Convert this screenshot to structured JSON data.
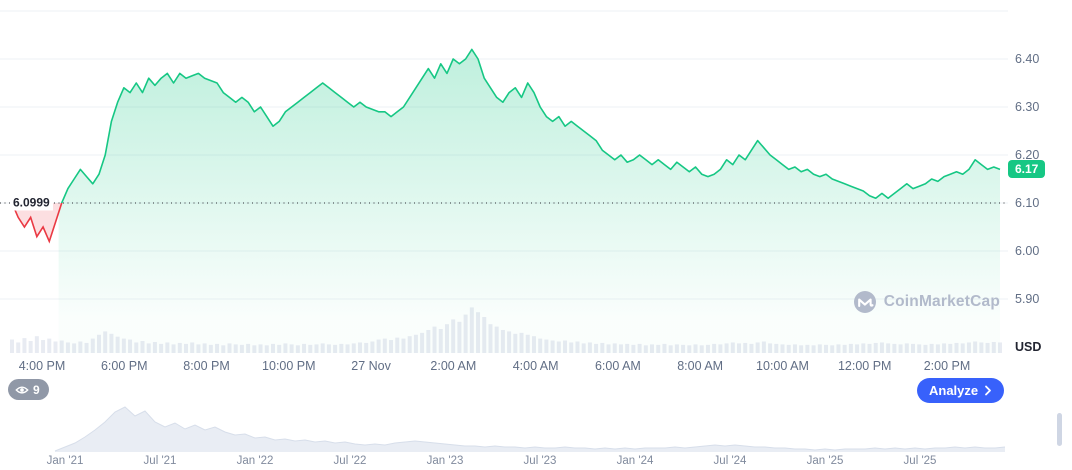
{
  "colors": {
    "up_green": "#16c784",
    "down_red": "#ea3943",
    "analyze_blue": "#3861fb",
    "grid": "#eef1f6",
    "volume_bar": "#e8ebf2",
    "navigator_fill": "#e9edf4",
    "navigator_edge": "#d7deea"
  },
  "chart_data": {
    "type": "area",
    "title": "Intraday price chart (USD)",
    "axis_unit": "USD",
    "baseline_value": 6.0999,
    "baseline_label": "6.0999",
    "last_price_value": 6.17,
    "last_price_label": "6.17",
    "ylim": [
      5.85,
      6.52
    ],
    "y_tick_labels": [
      "6.40",
      "6.30",
      "6.20",
      "6.10",
      "6.00",
      "5.90"
    ],
    "x_tick_labels": [
      "4:00 PM",
      "6:00 PM",
      "8:00 PM",
      "10:00 PM",
      "27 Nov",
      "2:00 AM",
      "4:00 AM",
      "6:00 AM",
      "8:00 AM",
      "10:00 AM",
      "12:00 PM",
      "2:00 PM"
    ],
    "price_series": [
      6.1,
      6.07,
      6.05,
      6.07,
      6.03,
      6.05,
      6.02,
      6.06,
      6.1,
      6.13,
      6.15,
      6.17,
      6.155,
      6.14,
      6.16,
      6.2,
      6.27,
      6.31,
      6.34,
      6.33,
      6.35,
      6.33,
      6.36,
      6.345,
      6.36,
      6.37,
      6.35,
      6.37,
      6.36,
      6.365,
      6.37,
      6.36,
      6.355,
      6.35,
      6.33,
      6.32,
      6.31,
      6.32,
      6.31,
      6.29,
      6.3,
      6.28,
      6.26,
      6.27,
      6.29,
      6.3,
      6.31,
      6.32,
      6.33,
      6.34,
      6.35,
      6.34,
      6.33,
      6.32,
      6.31,
      6.3,
      6.31,
      6.3,
      6.295,
      6.29,
      6.29,
      6.28,
      6.29,
      6.3,
      6.32,
      6.34,
      6.36,
      6.38,
      6.36,
      6.39,
      6.37,
      6.4,
      6.39,
      6.4,
      6.42,
      6.4,
      6.36,
      6.34,
      6.32,
      6.31,
      6.33,
      6.34,
      6.32,
      6.35,
      6.33,
      6.3,
      6.28,
      6.27,
      6.28,
      6.26,
      6.27,
      6.26,
      6.25,
      6.24,
      6.23,
      6.21,
      6.2,
      6.19,
      6.2,
      6.185,
      6.19,
      6.2,
      6.19,
      6.18,
      6.19,
      6.18,
      6.17,
      6.185,
      6.175,
      6.165,
      6.175,
      6.16,
      6.155,
      6.16,
      6.17,
      6.19,
      6.18,
      6.2,
      6.19,
      6.21,
      6.23,
      6.215,
      6.2,
      6.19,
      6.18,
      6.17,
      6.175,
      6.165,
      6.17,
      6.16,
      6.155,
      6.16,
      6.15,
      6.145,
      6.14,
      6.135,
      6.13,
      6.125,
      6.115,
      6.11,
      6.12,
      6.11,
      6.12,
      6.13,
      6.14,
      6.13,
      6.135,
      6.14,
      6.15,
      6.145,
      6.155,
      6.16,
      6.165,
      6.16,
      6.17,
      6.19,
      6.18,
      6.17,
      6.175,
      6.17
    ],
    "volume_series": [
      0.28,
      0.22,
      0.31,
      0.25,
      0.35,
      0.27,
      0.3,
      0.24,
      0.26,
      0.22,
      0.2,
      0.24,
      0.21,
      0.3,
      0.38,
      0.45,
      0.4,
      0.34,
      0.3,
      0.28,
      0.22,
      0.25,
      0.2,
      0.23,
      0.19,
      0.22,
      0.18,
      0.21,
      0.19,
      0.22,
      0.18,
      0.2,
      0.17,
      0.19,
      0.16,
      0.2,
      0.18,
      0.17,
      0.19,
      0.16,
      0.18,
      0.16,
      0.19,
      0.17,
      0.2,
      0.18,
      0.16,
      0.19,
      0.17,
      0.18,
      0.2,
      0.18,
      0.17,
      0.19,
      0.18,
      0.2,
      0.22,
      0.21,
      0.24,
      0.28,
      0.3,
      0.27,
      0.32,
      0.3,
      0.35,
      0.38,
      0.42,
      0.48,
      0.55,
      0.5,
      0.6,
      0.7,
      0.65,
      0.8,
      0.95,
      0.85,
      0.75,
      0.6,
      0.55,
      0.48,
      0.45,
      0.4,
      0.42,
      0.38,
      0.35,
      0.3,
      0.28,
      0.26,
      0.24,
      0.26,
      0.22,
      0.24,
      0.2,
      0.22,
      0.19,
      0.21,
      0.18,
      0.2,
      0.18,
      0.19,
      0.17,
      0.19,
      0.16,
      0.18,
      0.17,
      0.19,
      0.16,
      0.18,
      0.17,
      0.16,
      0.18,
      0.16,
      0.17,
      0.19,
      0.18,
      0.2,
      0.22,
      0.2,
      0.21,
      0.19,
      0.22,
      0.24,
      0.2,
      0.19,
      0.18,
      0.17,
      0.18,
      0.16,
      0.17,
      0.16,
      0.18,
      0.17,
      0.16,
      0.18,
      0.17,
      0.19,
      0.18,
      0.2,
      0.19,
      0.21,
      0.22,
      0.2,
      0.19,
      0.18,
      0.2,
      0.19,
      0.18,
      0.17,
      0.19,
      0.18,
      0.2,
      0.19,
      0.21,
      0.2,
      0.22,
      0.24,
      0.22,
      0.21,
      0.23,
      0.22
    ],
    "navigator": {
      "x_tick_labels": [
        "Jan '21",
        "Jul '21",
        "Jan '22",
        "Jul '22",
        "Jan '23",
        "Jul '23",
        "Jan '24",
        "Jul '24",
        "Jan '25",
        "Jul '25"
      ],
      "values": [
        1,
        5,
        9,
        15,
        22,
        30,
        40,
        45,
        36,
        41,
        30,
        25,
        29,
        23,
        27,
        22,
        25,
        20,
        17,
        18,
        14,
        15,
        12,
        13,
        11,
        12,
        10,
        11,
        9,
        10,
        8,
        7,
        8,
        7,
        9,
        10,
        11,
        10,
        9,
        8,
        7,
        6,
        6,
        5,
        6,
        5,
        5,
        4,
        5,
        4,
        4,
        5,
        4,
        4,
        3,
        4,
        3,
        4,
        3,
        4,
        4,
        4,
        5,
        4,
        5,
        6,
        7,
        6,
        7,
        6,
        5,
        5,
        4,
        4,
        3,
        3,
        2,
        3,
        2,
        3,
        3,
        3,
        4,
        3,
        4,
        3,
        4,
        3,
        4,
        4,
        5,
        4,
        5,
        4,
        4,
        5
      ]
    }
  },
  "toolbar": {
    "watching_count": "9",
    "analyze_label": "Analyze"
  },
  "watermark": {
    "text": "CoinMarketCap"
  }
}
